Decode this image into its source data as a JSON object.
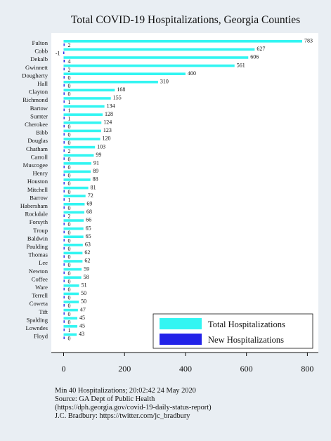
{
  "chart_data": {
    "type": "bar",
    "orientation": "horizontal",
    "title": "Total COVID-19 Hospitalizations, Georgia Counties",
    "categories": [
      "Fulton",
      "Cobb",
      "Dekalb",
      "Gwinnett",
      "Dougherty",
      "Hall",
      "Clayton",
      "Richmond",
      "Bartow",
      "Sumter",
      "Cherokee",
      "Bibb",
      "Douglas",
      "Chatham",
      "Carroll",
      "Muscogee",
      "Henry",
      "Houston",
      "Mitchell",
      "Barrow",
      "Habersham",
      "Rockdale",
      "Forsyth",
      "Troup",
      "Baldwin",
      "Paulding",
      "Thomas",
      "Lee",
      "Newton",
      "Coffee",
      "Ware",
      "Terrell",
      "Coweta",
      "Tift",
      "Spalding",
      "Lowndes",
      "Floyd"
    ],
    "series": [
      {
        "name": "Total Hospitalizations",
        "color": "#33f5f2",
        "values": [
          783,
          627,
          606,
          561,
          400,
          310,
          168,
          155,
          134,
          128,
          124,
          123,
          120,
          103,
          99,
          91,
          89,
          88,
          81,
          72,
          69,
          68,
          66,
          65,
          65,
          63,
          62,
          62,
          59,
          58,
          51,
          50,
          50,
          47,
          45,
          45,
          43
        ]
      },
      {
        "name": "New Hospitalizations",
        "color": "#2323e8",
        "values": [
          2,
          -1,
          4,
          2,
          0,
          0,
          0,
          1,
          1,
          1,
          0,
          0,
          0,
          2,
          0,
          0,
          0,
          0,
          0,
          1,
          0,
          2,
          0,
          0,
          0,
          0,
          0,
          0,
          0,
          0,
          0,
          0,
          0,
          0,
          0,
          1,
          0
        ]
      }
    ],
    "xlim": [
      -30,
      830
    ],
    "xticks": [
      0,
      200,
      400,
      600,
      800
    ],
    "xlabel": "",
    "ylabel": "",
    "legend": "bottom-right",
    "grid": false
  },
  "footnotes": [
    "Min 40 Hospitalizations; 20:02:42  24 May 2020",
    "Source: GA Dept of Public Health",
    "(https://dph.georgia.gov/covid-19-daily-status-report)",
    "J.C. Bradbury: https://twitter.com/jc_bradbury"
  ]
}
